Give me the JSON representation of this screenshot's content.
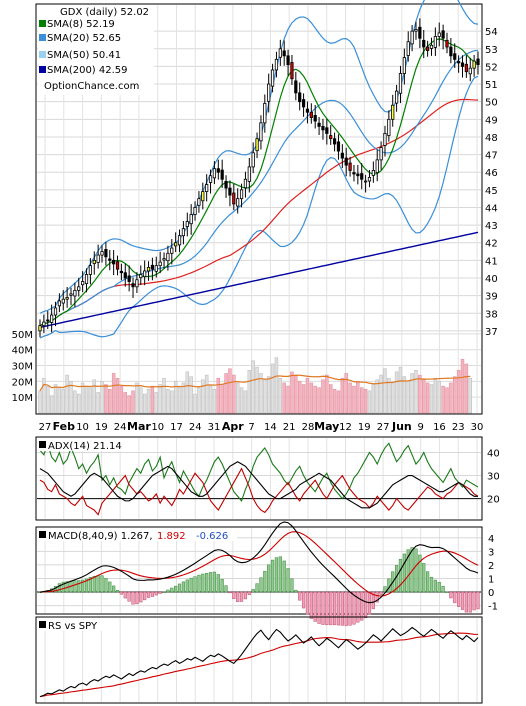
{
  "chart_data": [
    {
      "type": "candlestick",
      "panel": "price",
      "title": "GDX (daily) 52.02",
      "watermark": "OptionChance.com",
      "legend": [
        {
          "label": "SMA(8) 52.19",
          "color": "#008000"
        },
        {
          "label": "SMA(20) 52.65",
          "color": "#3a8fd8"
        },
        {
          "label": "SMA(50) 50.41",
          "color": "#9ad0f0"
        },
        {
          "label": "SMA(200) 42.59",
          "color": "#0000a0"
        }
      ],
      "y_ticks": [
        "54",
        "53",
        "52",
        "51",
        "50",
        "49",
        "48",
        "47",
        "46",
        "45",
        "44",
        "43",
        "42",
        "41",
        "40",
        "39",
        "38",
        "37"
      ],
      "ylim": [
        36.2,
        55.2
      ],
      "volume_ticks": [
        "50M",
        "40M",
        "30M",
        "20M",
        "10M"
      ],
      "volume_ylim": [
        0,
        55
      ],
      "x_tick_labels": [
        "27",
        "Feb",
        "10",
        "19",
        "24",
        "Mar",
        "10",
        "17",
        "24",
        "31",
        "Apr",
        "7",
        "14",
        "21",
        "28",
        "May",
        "12",
        "19",
        "27",
        "Jun",
        "9",
        "16",
        "23",
        "30"
      ],
      "closes": [
        37.3,
        37.5,
        37.6,
        37.9,
        38.3,
        38.7,
        38.8,
        38.9,
        39.1,
        39.3,
        39.5,
        39.8,
        40.2,
        40.7,
        41.0,
        41.3,
        41.5,
        41.2,
        41.0,
        40.8,
        40.5,
        40.3,
        40.0,
        39.8,
        39.5,
        39.9,
        40.2,
        40.4,
        40.6,
        40.5,
        40.7,
        40.9,
        41.1,
        41.4,
        41.7,
        42.0,
        42.4,
        42.8,
        43.2,
        43.6,
        44.0,
        44.5,
        44.9,
        45.3,
        45.8,
        46.2,
        46.0,
        45.6,
        45.1,
        44.7,
        44.2,
        44.5,
        45.0,
        45.6,
        46.3,
        47.1,
        47.9,
        48.8,
        49.9,
        51.0,
        51.8,
        52.4,
        53.0,
        52.6,
        52.1,
        51.3,
        50.5,
        50.0,
        49.7,
        49.4,
        49.1,
        48.9,
        48.6,
        48.4,
        48.2,
        47.9,
        47.6,
        47.2,
        46.8,
        46.4,
        46.1,
        45.9,
        45.8,
        45.6,
        45.5,
        45.7,
        46.1,
        46.7,
        47.4,
        48.2,
        49.0,
        49.8,
        50.6,
        51.6,
        52.5,
        53.4,
        54.0,
        54.1,
        53.6,
        53.1,
        52.9,
        53.2,
        53.7,
        53.9,
        53.6,
        53.1,
        52.6,
        52.4,
        52.2,
        52.0,
        51.7,
        51.9,
        52.3,
        52.1
      ],
      "volumes": [
        14,
        22,
        17,
        11,
        18,
        16,
        15,
        24,
        20,
        14,
        12,
        19,
        17,
        16,
        21,
        13,
        20,
        18,
        15,
        25,
        22,
        17,
        13,
        11,
        14,
        19,
        16,
        12,
        15,
        17,
        13,
        18,
        22,
        15,
        14,
        20,
        17,
        19,
        26,
        23,
        12,
        16,
        21,
        24,
        17,
        15,
        22,
        18,
        25,
        28,
        24,
        19,
        16,
        14,
        27,
        33,
        29,
        25,
        21,
        23,
        31,
        35,
        22,
        19,
        17,
        26,
        24,
        20,
        18,
        22,
        19,
        17,
        16,
        21,
        24,
        18,
        15,
        14,
        22,
        25,
        19,
        17,
        20,
        16,
        15,
        14,
        18,
        21,
        24,
        28,
        22,
        19,
        26,
        29,
        23,
        20,
        25,
        27,
        24,
        21,
        19,
        18,
        22,
        20,
        17,
        16,
        19,
        23,
        27,
        34,
        31,
        22
      ]
    },
    {
      "type": "line",
      "panel": "adx",
      "label": "ADX(14) 21.14",
      "y_ticks": [
        "40",
        "30",
        "20"
      ],
      "ylim": [
        12,
        45
      ],
      "series": [
        {
          "name": "ADX(14) 21.14",
          "color": "#000000"
        },
        {
          "name": "",
          "color": "#1a7a1a"
        },
        {
          "name": "",
          "color": "#c00000"
        }
      ],
      "adx": [
        33,
        32,
        31,
        29,
        27,
        25,
        23,
        22,
        21,
        22,
        24,
        26,
        28,
        30,
        31,
        30,
        29,
        27,
        25,
        23,
        21,
        20,
        19,
        19,
        20,
        22,
        24,
        26,
        28,
        30,
        31,
        32,
        33,
        34,
        33,
        31,
        29,
        27,
        25,
        23,
        22,
        21,
        21,
        22,
        24,
        26,
        28,
        30,
        32,
        34,
        35,
        36,
        35,
        34,
        32,
        30,
        28,
        26,
        24,
        22,
        21,
        20,
        20,
        21,
        22,
        23,
        24,
        26,
        27,
        28,
        29,
        30,
        31,
        30,
        29,
        28,
        26,
        24,
        22,
        20,
        19,
        18,
        17,
        16,
        16,
        16,
        17,
        18,
        20,
        22,
        24,
        26,
        27,
        28,
        29,
        30,
        30,
        29,
        28,
        27,
        26,
        25,
        24,
        23,
        23,
        24,
        25,
        26,
        27,
        26,
        24,
        22,
        21,
        21
      ],
      "plus_di": [
        41,
        39,
        44,
        38,
        36,
        40,
        35,
        37,
        42,
        38,
        33,
        35,
        31,
        34,
        36,
        39,
        28,
        30,
        26,
        29,
        25,
        24,
        22,
        27,
        30,
        33,
        31,
        35,
        37,
        32,
        34,
        38,
        29,
        33,
        36,
        31,
        27,
        32,
        29,
        26,
        23,
        21,
        25,
        28,
        32,
        36,
        38,
        35,
        31,
        27,
        23,
        21,
        19,
        24,
        28,
        34,
        38,
        40,
        42,
        39,
        35,
        33,
        31,
        28,
        26,
        29,
        32,
        34,
        30,
        27,
        25,
        23,
        26,
        29,
        31,
        27,
        24,
        22,
        20,
        22,
        25,
        29,
        31,
        34,
        37,
        40,
        38,
        35,
        39,
        42,
        44,
        40,
        36,
        38,
        41,
        43,
        39,
        35,
        37,
        40,
        36,
        33,
        31,
        29,
        27,
        30,
        33,
        29,
        27,
        25,
        28,
        27,
        26,
        25
      ],
      "minus_di": [
        28,
        27,
        24,
        23,
        26,
        22,
        21,
        20,
        18,
        17,
        19,
        21,
        17,
        16,
        15,
        13,
        18,
        20,
        22,
        24,
        26,
        28,
        30,
        26,
        24,
        22,
        23,
        21,
        19,
        20,
        22,
        18,
        21,
        19,
        17,
        20,
        24,
        22,
        25,
        28,
        31,
        29,
        27,
        23,
        19,
        17,
        15,
        18,
        21,
        24,
        27,
        30,
        33,
        29,
        25,
        20,
        17,
        15,
        14,
        16,
        19,
        21,
        23,
        25,
        27,
        24,
        21,
        19,
        22,
        24,
        26,
        28,
        25,
        22,
        20,
        23,
        26,
        28,
        30,
        27,
        24,
        22,
        20,
        19,
        18,
        16,
        18,
        21,
        19,
        17,
        15,
        17,
        20,
        18,
        16,
        15,
        17,
        19,
        21,
        23,
        25,
        24,
        22,
        21,
        20,
        22,
        23,
        25,
        27,
        26,
        25,
        24,
        22,
        21
      ]
    },
    {
      "type": "line+bar",
      "panel": "macd",
      "label": "MACD(8,40,9) 1.267,",
      "value_red": "1.892",
      "value_blue": "-0.626",
      "y_ticks": [
        "4",
        "3",
        "2",
        "1",
        "0",
        "-1"
      ],
      "ylim": [
        -1.4,
        4.5
      ],
      "series": [
        {
          "name": "",
          "color": "#000000"
        },
        {
          "name": "",
          "color": "#d00000"
        }
      ]
    },
    {
      "type": "line",
      "panel": "rs",
      "label": "RS vs SPY",
      "series": [
        {
          "name": "",
          "color": "#000000"
        },
        {
          "name": "",
          "color": "#d00000"
        }
      ],
      "rs": [
        1.0,
        1.02,
        1.05,
        1.04,
        1.07,
        1.1,
        1.08,
        1.12,
        1.15,
        1.13,
        1.18,
        1.2,
        1.17,
        1.22,
        1.25,
        1.23,
        1.27,
        1.3,
        1.28,
        1.32,
        1.29,
        1.26,
        1.3,
        1.34,
        1.31,
        1.35,
        1.38,
        1.36,
        1.4,
        1.43,
        1.41,
        1.45,
        1.48,
        1.46,
        1.5,
        1.53,
        1.49,
        1.52,
        1.56,
        1.54,
        1.58,
        1.55,
        1.52,
        1.57,
        1.61,
        1.59,
        1.63,
        1.6,
        1.56,
        1.52,
        1.49,
        1.55,
        1.62,
        1.7,
        1.78,
        1.86,
        1.93,
        1.98,
        1.9,
        1.84,
        1.92,
        1.99,
        1.95,
        1.88,
        1.82,
        1.86,
        1.91,
        1.85,
        1.79,
        1.83,
        1.88,
        1.81,
        1.75,
        1.8,
        1.86,
        1.82,
        1.77,
        1.72,
        1.78,
        1.84,
        1.8,
        1.75,
        1.7,
        1.74,
        1.79,
        1.85,
        1.91,
        1.87,
        1.82,
        1.88,
        1.94,
        2.0,
        1.95,
        1.9,
        1.93,
        1.97,
        2.02,
        1.98,
        1.93,
        1.89,
        1.94,
        1.99,
        1.95,
        1.9,
        1.86,
        1.92,
        1.97,
        1.93,
        1.88,
        1.84,
        1.9,
        1.86,
        1.81,
        1.87
      ]
    }
  ]
}
